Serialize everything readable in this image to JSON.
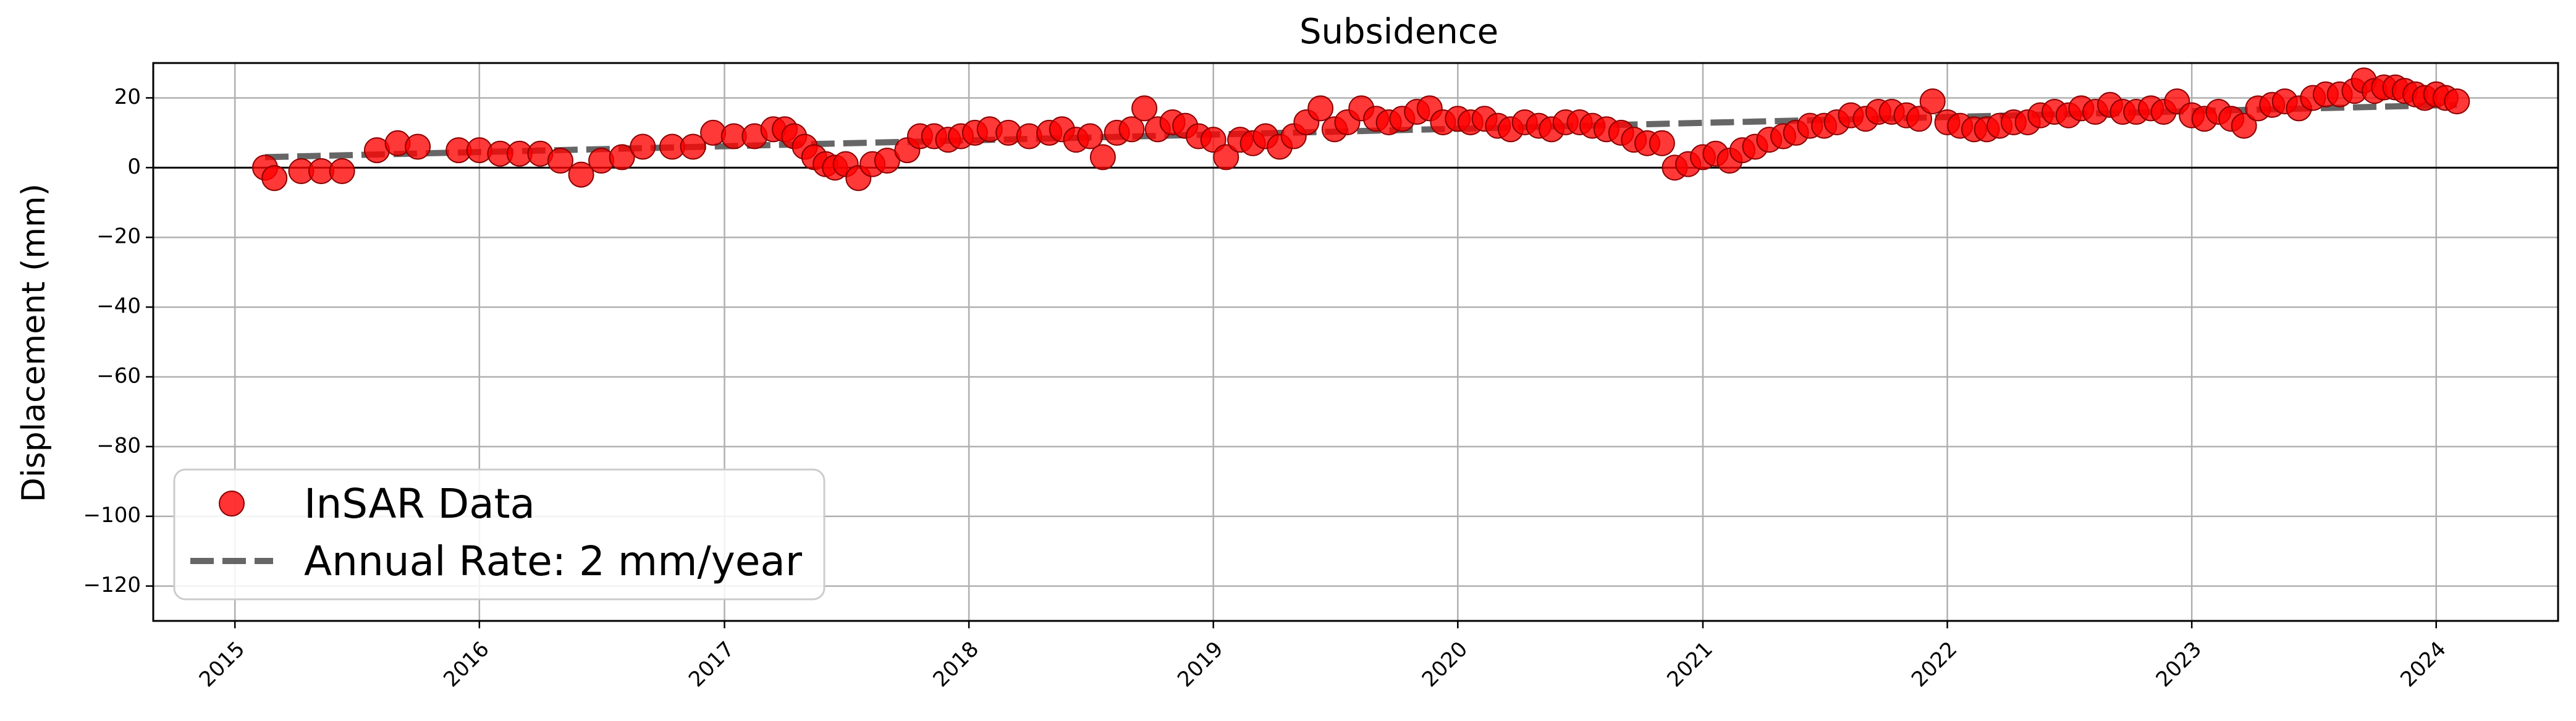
{
  "chart_data": {
    "type": "scatter",
    "title": "Subsidence",
    "xlabel": "",
    "ylabel": "Displacement (mm)",
    "x_ticks": [
      "2015",
      "2016",
      "2017",
      "2018",
      "2019",
      "2020",
      "2021",
      "2022",
      "2023",
      "2024"
    ],
    "y_ticks": [
      "20",
      "0",
      "−20",
      "−40",
      "−60",
      "−80",
      "−100",
      "−120"
    ],
    "xlim": [
      "2014-09-01",
      "2024-07-01"
    ],
    "ylim": [
      -130,
      30
    ],
    "grid": true,
    "legend_position": "lower-left",
    "zero_line": true,
    "series": [
      {
        "name": "InSAR Data",
        "kind": "scatter",
        "color": "#ff0000",
        "edge_color": "#8b0000",
        "points": [
          {
            "x": "2015-02-15",
            "y": 0
          },
          {
            "x": "2015-03-01",
            "y": -3
          },
          {
            "x": "2015-04-10",
            "y": -1
          },
          {
            "x": "2015-05-10",
            "y": -1
          },
          {
            "x": "2015-06-10",
            "y": -1
          },
          {
            "x": "2015-08-01",
            "y": 5
          },
          {
            "x": "2015-09-01",
            "y": 7
          },
          {
            "x": "2015-10-01",
            "y": 6
          },
          {
            "x": "2015-12-01",
            "y": 5
          },
          {
            "x": "2016-01-01",
            "y": 5
          },
          {
            "x": "2016-02-01",
            "y": 4
          },
          {
            "x": "2016-03-01",
            "y": 4
          },
          {
            "x": "2016-04-01",
            "y": 4
          },
          {
            "x": "2016-05-01",
            "y": 2
          },
          {
            "x": "2016-06-01",
            "y": -2
          },
          {
            "x": "2016-07-01",
            "y": 2
          },
          {
            "x": "2016-08-01",
            "y": 3
          },
          {
            "x": "2016-09-01",
            "y": 6
          },
          {
            "x": "2016-10-15",
            "y": 6
          },
          {
            "x": "2016-11-15",
            "y": 6
          },
          {
            "x": "2016-12-15",
            "y": 10
          },
          {
            "x": "2017-01-15",
            "y": 9
          },
          {
            "x": "2017-02-15",
            "y": 9
          },
          {
            "x": "2017-03-15",
            "y": 11
          },
          {
            "x": "2017-04-01",
            "y": 11
          },
          {
            "x": "2017-04-15",
            "y": 9
          },
          {
            "x": "2017-05-01",
            "y": 6
          },
          {
            "x": "2017-05-15",
            "y": 3
          },
          {
            "x": "2017-06-01",
            "y": 1
          },
          {
            "x": "2017-06-15",
            "y": 0
          },
          {
            "x": "2017-07-01",
            "y": 1
          },
          {
            "x": "2017-07-20",
            "y": -3
          },
          {
            "x": "2017-08-10",
            "y": 1
          },
          {
            "x": "2017-09-01",
            "y": 2
          },
          {
            "x": "2017-10-01",
            "y": 5
          },
          {
            "x": "2017-10-20",
            "y": 9
          },
          {
            "x": "2017-11-10",
            "y": 9
          },
          {
            "x": "2017-12-01",
            "y": 8
          },
          {
            "x": "2017-12-20",
            "y": 9
          },
          {
            "x": "2018-01-10",
            "y": 10
          },
          {
            "x": "2018-02-01",
            "y": 11
          },
          {
            "x": "2018-03-01",
            "y": 10
          },
          {
            "x": "2018-04-01",
            "y": 9
          },
          {
            "x": "2018-05-01",
            "y": 10
          },
          {
            "x": "2018-05-20",
            "y": 11
          },
          {
            "x": "2018-06-10",
            "y": 8
          },
          {
            "x": "2018-07-01",
            "y": 9
          },
          {
            "x": "2018-07-20",
            "y": 3
          },
          {
            "x": "2018-08-10",
            "y": 10
          },
          {
            "x": "2018-09-01",
            "y": 11
          },
          {
            "x": "2018-09-20",
            "y": 17
          },
          {
            "x": "2018-10-10",
            "y": 11
          },
          {
            "x": "2018-11-01",
            "y": 13
          },
          {
            "x": "2018-11-20",
            "y": 12
          },
          {
            "x": "2018-12-10",
            "y": 9
          },
          {
            "x": "2019-01-01",
            "y": 8
          },
          {
            "x": "2019-01-20",
            "y": 3
          },
          {
            "x": "2019-02-10",
            "y": 8
          },
          {
            "x": "2019-03-01",
            "y": 7
          },
          {
            "x": "2019-03-20",
            "y": 9
          },
          {
            "x": "2019-04-10",
            "y": 6
          },
          {
            "x": "2019-05-01",
            "y": 9
          },
          {
            "x": "2019-05-20",
            "y": 13
          },
          {
            "x": "2019-06-10",
            "y": 17
          },
          {
            "x": "2019-07-01",
            "y": 11
          },
          {
            "x": "2019-07-20",
            "y": 13
          },
          {
            "x": "2019-08-10",
            "y": 17
          },
          {
            "x": "2019-09-01",
            "y": 14
          },
          {
            "x": "2019-09-20",
            "y": 13
          },
          {
            "x": "2019-10-10",
            "y": 14
          },
          {
            "x": "2019-11-01",
            "y": 16
          },
          {
            "x": "2019-11-20",
            "y": 17
          },
          {
            "x": "2019-12-10",
            "y": 13
          },
          {
            "x": "2020-01-01",
            "y": 14
          },
          {
            "x": "2020-01-20",
            "y": 13
          },
          {
            "x": "2020-02-10",
            "y": 14
          },
          {
            "x": "2020-03-01",
            "y": 12
          },
          {
            "x": "2020-03-20",
            "y": 11
          },
          {
            "x": "2020-04-10",
            "y": 13
          },
          {
            "x": "2020-05-01",
            "y": 12
          },
          {
            "x": "2020-05-20",
            "y": 11
          },
          {
            "x": "2020-06-10",
            "y": 13
          },
          {
            "x": "2020-07-01",
            "y": 13
          },
          {
            "x": "2020-07-20",
            "y": 12
          },
          {
            "x": "2020-08-10",
            "y": 11
          },
          {
            "x": "2020-09-01",
            "y": 10
          },
          {
            "x": "2020-09-20",
            "y": 8
          },
          {
            "x": "2020-10-10",
            "y": 7
          },
          {
            "x": "2020-11-01",
            "y": 7
          },
          {
            "x": "2020-11-20",
            "y": 0
          },
          {
            "x": "2020-12-10",
            "y": 1
          },
          {
            "x": "2021-01-01",
            "y": 3
          },
          {
            "x": "2021-01-20",
            "y": 4
          },
          {
            "x": "2021-02-10",
            "y": 2
          },
          {
            "x": "2021-03-01",
            "y": 5
          },
          {
            "x": "2021-03-20",
            "y": 6
          },
          {
            "x": "2021-04-10",
            "y": 8
          },
          {
            "x": "2021-05-01",
            "y": 9
          },
          {
            "x": "2021-05-20",
            "y": 10
          },
          {
            "x": "2021-06-10",
            "y": 12
          },
          {
            "x": "2021-07-01",
            "y": 12
          },
          {
            "x": "2021-07-20",
            "y": 13
          },
          {
            "x": "2021-08-10",
            "y": 15
          },
          {
            "x": "2021-09-01",
            "y": 14
          },
          {
            "x": "2021-09-20",
            "y": 16
          },
          {
            "x": "2021-10-10",
            "y": 16
          },
          {
            "x": "2021-11-01",
            "y": 15
          },
          {
            "x": "2021-11-20",
            "y": 14
          },
          {
            "x": "2021-12-10",
            "y": 19
          },
          {
            "x": "2022-01-01",
            "y": 13
          },
          {
            "x": "2022-01-20",
            "y": 12
          },
          {
            "x": "2022-02-10",
            "y": 11
          },
          {
            "x": "2022-03-01",
            "y": 11
          },
          {
            "x": "2022-03-20",
            "y": 12
          },
          {
            "x": "2022-04-10",
            "y": 13
          },
          {
            "x": "2022-05-01",
            "y": 13
          },
          {
            "x": "2022-05-20",
            "y": 15
          },
          {
            "x": "2022-06-10",
            "y": 16
          },
          {
            "x": "2022-07-01",
            "y": 15
          },
          {
            "x": "2022-07-20",
            "y": 17
          },
          {
            "x": "2022-08-10",
            "y": 16
          },
          {
            "x": "2022-09-01",
            "y": 18
          },
          {
            "x": "2022-09-20",
            "y": 16
          },
          {
            "x": "2022-10-10",
            "y": 16
          },
          {
            "x": "2022-11-01",
            "y": 17
          },
          {
            "x": "2022-11-20",
            "y": 16
          },
          {
            "x": "2022-12-10",
            "y": 19
          },
          {
            "x": "2023-01-01",
            "y": 15
          },
          {
            "x": "2023-01-20",
            "y": 14
          },
          {
            "x": "2023-02-10",
            "y": 16
          },
          {
            "x": "2023-03-01",
            "y": 14
          },
          {
            "x": "2023-03-20",
            "y": 12
          },
          {
            "x": "2023-04-10",
            "y": 17
          },
          {
            "x": "2023-05-01",
            "y": 18
          },
          {
            "x": "2023-05-20",
            "y": 19
          },
          {
            "x": "2023-06-10",
            "y": 17
          },
          {
            "x": "2023-07-01",
            "y": 20
          },
          {
            "x": "2023-07-20",
            "y": 21
          },
          {
            "x": "2023-08-10",
            "y": 21
          },
          {
            "x": "2023-09-01",
            "y": 22
          },
          {
            "x": "2023-09-15",
            "y": 25
          },
          {
            "x": "2023-10-01",
            "y": 22
          },
          {
            "x": "2023-10-15",
            "y": 23
          },
          {
            "x": "2023-11-01",
            "y": 23
          },
          {
            "x": "2023-11-15",
            "y": 22
          },
          {
            "x": "2023-12-01",
            "y": 21
          },
          {
            "x": "2023-12-15",
            "y": 20
          },
          {
            "x": "2024-01-01",
            "y": 21
          },
          {
            "x": "2024-01-15",
            "y": 20
          },
          {
            "x": "2024-02-01",
            "y": 19
          }
        ]
      },
      {
        "name": "Annual Rate: 2 mm/year",
        "kind": "line",
        "dashed": true,
        "color": "#555555",
        "points": [
          {
            "x": "2015-02-15",
            "y": 3
          },
          {
            "x": "2024-02-01",
            "y": 18
          }
        ]
      }
    ]
  }
}
